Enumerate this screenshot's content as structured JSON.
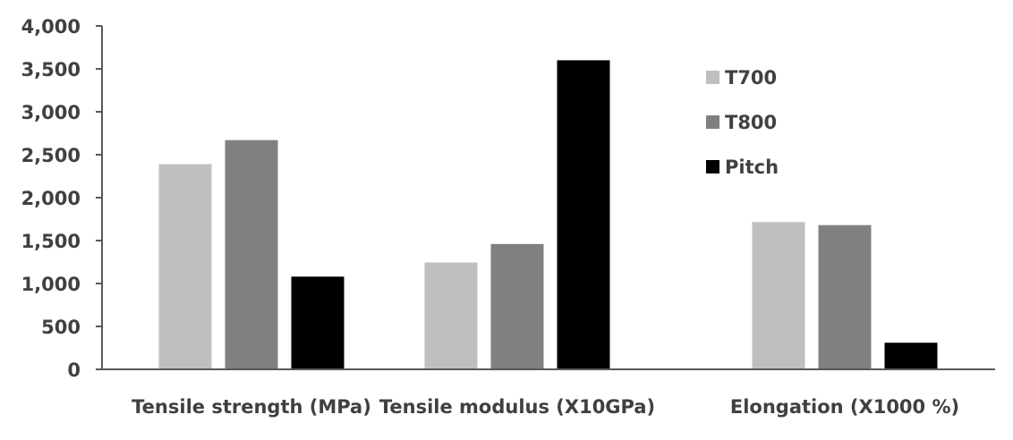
{
  "chart_data": {
    "type": "bar",
    "title": "",
    "xlabel": "",
    "ylabel": "",
    "categories": [
      "Tensile strength (MPa)",
      "Tensile modulus (X10GPa)",
      "Elongation (X1000 %)"
    ],
    "series": [
      {
        "name": "T700",
        "color": "#bfbfbf",
        "values": [
          2390,
          1245,
          1715
        ]
      },
      {
        "name": "T800",
        "color": "#808080",
        "values": [
          2670,
          1460,
          1680
        ]
      },
      {
        "name": "Pitch",
        "color": "#000000",
        "values": [
          1080,
          3600,
          310
        ]
      }
    ],
    "ylim": [
      0,
      4000
    ],
    "y_ticks": [
      0,
      500,
      1000,
      1500,
      2000,
      2500,
      3000,
      3500,
      4000
    ],
    "y_tick_labels": [
      "0",
      "500",
      "1,000",
      "1,500",
      "2,000",
      "2,500",
      "3,000",
      "3,500",
      "4,000"
    ],
    "grid": false,
    "legend_position": "right"
  }
}
